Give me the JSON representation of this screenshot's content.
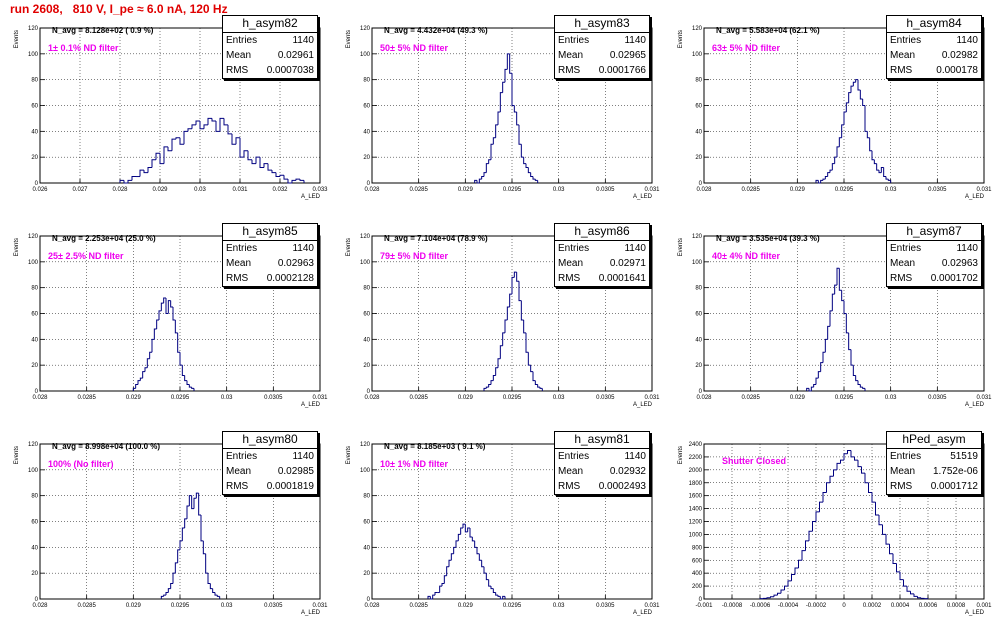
{
  "title": "run 2608,   810 V, I_pe ≈ 6.0 nA, 120 Hz",
  "colors": {
    "title": "#e00000",
    "histogram": "#000080",
    "annotation": "#ee00ee",
    "grid": "#000000"
  },
  "chart_data": [
    {
      "type": "bar",
      "name": "h_asym82",
      "entries": "1140",
      "mean": "0.02961",
      "rms": "0.0007038",
      "n_avg": "N_avg = 8.128e+02 ( 0.9 %)",
      "filter": "1± 0.1% ND filter",
      "xlabel": "A_LED",
      "ylabel": "Events",
      "xlim": [
        0.026,
        0.033
      ],
      "ylim": [
        0,
        120
      ],
      "xticks": [
        "0.026",
        "0.027",
        "0.028",
        "0.029",
        "0.03",
        "0.031",
        "0.032",
        "0.033"
      ],
      "yticks": [
        "0",
        "20",
        "40",
        "60",
        "80",
        "100",
        "120"
      ],
      "x_start": 0.028,
      "bin_width": 0.0001,
      "values": [
        2,
        0,
        2,
        5,
        5,
        10,
        8,
        12,
        18,
        23,
        15,
        28,
        25,
        34,
        35,
        30,
        40,
        42,
        45,
        48,
        42,
        45,
        50,
        48,
        40,
        50,
        45,
        38,
        30,
        35,
        20,
        25,
        18,
        15,
        20,
        12,
        15,
        10,
        8,
        5,
        6,
        3,
        0,
        2,
        3,
        2
      ]
    },
    {
      "type": "bar",
      "name": "h_asym83",
      "entries": "1140",
      "mean": "0.02965",
      "rms": "0.0001766",
      "n_avg": "N_avg = 4.432e+04 (49.3 %)",
      "filter": "50± 5% ND filter",
      "xlabel": "A_LED",
      "ylabel": "Events",
      "xlim": [
        0.028,
        0.031
      ],
      "ylim": [
        0,
        120
      ],
      "xticks": [
        "0.028",
        "0.0285",
        "0.029",
        "0.0295",
        "0.03",
        "0.0305",
        "0.031"
      ],
      "yticks": [
        "0",
        "20",
        "40",
        "60",
        "80",
        "100",
        "120"
      ],
      "x_start": 0.0291,
      "bin_width": 2.5e-05,
      "values": [
        2,
        0,
        3,
        5,
        8,
        15,
        18,
        30,
        35,
        45,
        55,
        70,
        78,
        88,
        100,
        85,
        60,
        55,
        45,
        30,
        20,
        15,
        12,
        8,
        5,
        3,
        2
      ]
    },
    {
      "type": "bar",
      "name": "h_asym84",
      "entries": "1140",
      "mean": "0.02982",
      "rms": "0.000178",
      "n_avg": "N_avg = 5.583e+04 (62.1 %)",
      "filter": "63± 5% ND filter",
      "xlabel": "A_LED",
      "ylabel": "Events",
      "xlim": [
        0.028,
        0.031
      ],
      "ylim": [
        0,
        120
      ],
      "xticks": [
        "0.028",
        "0.0285",
        "0.029",
        "0.0295",
        "0.03",
        "0.0305",
        "0.031"
      ],
      "yticks": [
        "0",
        "20",
        "40",
        "60",
        "80",
        "100",
        "120"
      ],
      "x_start": 0.0292,
      "bin_width": 2.5e-05,
      "values": [
        2,
        0,
        2,
        3,
        5,
        8,
        10,
        15,
        20,
        28,
        35,
        45,
        55,
        62,
        70,
        75,
        78,
        80,
        72,
        65,
        60,
        40,
        35,
        25,
        18,
        15,
        10,
        8,
        12,
        5,
        3,
        2
      ]
    },
    {
      "type": "bar",
      "name": "h_asym85",
      "entries": "1140",
      "mean": "0.02963",
      "rms": "0.0002128",
      "n_avg": "N_avg = 2.253e+04 (25.0 %)",
      "filter": "25± 2.5% ND filter",
      "xlabel": "A_LED",
      "ylabel": "Events",
      "xlim": [
        0.028,
        0.031
      ],
      "ylim": [
        0,
        120
      ],
      "xticks": [
        "0.028",
        "0.0285",
        "0.029",
        "0.0295",
        "0.03",
        "0.0305",
        "0.031"
      ],
      "yticks": [
        "0",
        "20",
        "40",
        "60",
        "80",
        "100",
        "120"
      ],
      "x_start": 0.029,
      "bin_width": 2.5e-05,
      "values": [
        2,
        5,
        8,
        10,
        15,
        18,
        25,
        30,
        40,
        48,
        55,
        62,
        68,
        72,
        60,
        70,
        65,
        55,
        45,
        30,
        20,
        12,
        8,
        5,
        3,
        2
      ]
    },
    {
      "type": "bar",
      "name": "h_asym86",
      "entries": "1140",
      "mean": "0.02971",
      "rms": "0.0001641",
      "n_avg": "N_avg = 7.104e+04 (78.9 %)",
      "filter": "79± 5% ND filter",
      "xlabel": "A_LED",
      "ylabel": "Events",
      "xlim": [
        0.028,
        0.031
      ],
      "ylim": [
        0,
        120
      ],
      "xticks": [
        "0.028",
        "0.0285",
        "0.029",
        "0.0295",
        "0.03",
        "0.0305",
        "0.031"
      ],
      "yticks": [
        "0",
        "20",
        "40",
        "60",
        "80",
        "100",
        "120"
      ],
      "x_start": 0.0292,
      "bin_width": 2.5e-05,
      "values": [
        2,
        3,
        5,
        8,
        12,
        18,
        25,
        35,
        45,
        55,
        65,
        75,
        88,
        92,
        85,
        70,
        55,
        45,
        30,
        20,
        15,
        8,
        5,
        3,
        2
      ]
    },
    {
      "type": "bar",
      "name": "h_asym87",
      "entries": "1140",
      "mean": "0.02963",
      "rms": "0.0001702",
      "n_avg": "N_avg = 3.535e+04 (39.3 %)",
      "filter": "40± 4% ND filter",
      "xlabel": "A_LED",
      "ylabel": "Events",
      "xlim": [
        0.028,
        0.031
      ],
      "ylim": [
        0,
        120
      ],
      "xticks": [
        "0.028",
        "0.0285",
        "0.029",
        "0.0295",
        "0.03",
        "0.0305",
        "0.031"
      ],
      "yticks": [
        "0",
        "20",
        "40",
        "60",
        "80",
        "100",
        "120"
      ],
      "x_start": 0.0291,
      "bin_width": 2.5e-05,
      "values": [
        2,
        0,
        3,
        5,
        10,
        15,
        22,
        30,
        40,
        50,
        62,
        75,
        82,
        95,
        78,
        70,
        60,
        45,
        32,
        20,
        12,
        8,
        5,
        3,
        2
      ]
    },
    {
      "type": "bar",
      "name": "h_asym80",
      "entries": "1140",
      "mean": "0.02985",
      "rms": "0.0001819",
      "n_avg": "N_avg = 8.998e+04 (100.0 %)",
      "filter": "100% (No filter)",
      "xlabel": "A_LED",
      "ylabel": "Events",
      "xlim": [
        0.028,
        0.031
      ],
      "ylim": [
        0,
        120
      ],
      "xticks": [
        "0.028",
        "0.0285",
        "0.029",
        "0.0295",
        "0.03",
        "0.0305",
        "0.031"
      ],
      "yticks": [
        "0",
        "20",
        "40",
        "60",
        "80",
        "100",
        "120"
      ],
      "x_start": 0.0293,
      "bin_width": 2.5e-05,
      "values": [
        2,
        3,
        5,
        8,
        12,
        20,
        28,
        38,
        45,
        55,
        62,
        72,
        80,
        70,
        78,
        82,
        65,
        45,
        35,
        20,
        12,
        8,
        5,
        3,
        2
      ]
    },
    {
      "type": "bar",
      "name": "h_asym81",
      "entries": "1140",
      "mean": "0.02932",
      "rms": "0.0002493",
      "n_avg": "N_avg = 8.185e+03 ( 9.1 %)",
      "filter": "10± 1% ND filter",
      "xlabel": "A_LED",
      "ylabel": "Events",
      "xlim": [
        0.028,
        0.031
      ],
      "ylim": [
        0,
        120
      ],
      "xticks": [
        "0.028",
        "0.0285",
        "0.029",
        "0.0295",
        "0.03",
        "0.0305",
        "0.031"
      ],
      "yticks": [
        "0",
        "20",
        "40",
        "60",
        "80",
        "100",
        "120"
      ],
      "x_start": 0.0286,
      "bin_width": 2.5e-05,
      "values": [
        2,
        0,
        3,
        5,
        5,
        10,
        12,
        18,
        25,
        30,
        35,
        40,
        45,
        50,
        55,
        58,
        52,
        55,
        48,
        45,
        40,
        35,
        30,
        25,
        20,
        15,
        10,
        8,
        5,
        3,
        2,
        0,
        2
      ]
    },
    {
      "type": "bar",
      "name": "hPed_asym",
      "entries": "51519",
      "mean": "1.752e-06",
      "rms": "0.0001712",
      "n_avg": "",
      "filter": "Shutter Closed",
      "xlabel": "A_LED",
      "ylabel": "Events",
      "xlim": [
        -0.001,
        0.001
      ],
      "ylim": [
        0,
        2400
      ],
      "xticks": [
        "-0.001",
        "-0.0008",
        "-0.0006",
        "-0.0004",
        "-0.0002",
        "0",
        "0.0002",
        "0.0004",
        "0.0006",
        "0.0008",
        "0.001"
      ],
      "yticks": [
        "0",
        "200",
        "400",
        "600",
        "800",
        "1000",
        "1200",
        "1400",
        "1600",
        "1800",
        "2000",
        "2200",
        "2400"
      ],
      "x_start": -0.0006,
      "bin_width": 2.5e-05,
      "values": [
        5,
        10,
        20,
        35,
        60,
        90,
        140,
        200,
        280,
        380,
        480,
        600,
        750,
        900,
        1050,
        1200,
        1350,
        1500,
        1650,
        1800,
        1900,
        2000,
        2100,
        2150,
        2250,
        2300,
        2200,
        2150,
        2050,
        1950,
        1800,
        1650,
        1500,
        1300,
        1150,
        1000,
        850,
        700,
        550,
        420,
        300,
        200,
        120,
        80,
        40,
        20,
        10,
        5
      ]
    }
  ]
}
